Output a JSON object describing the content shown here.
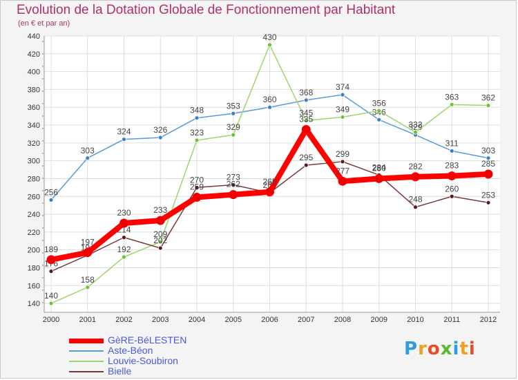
{
  "title": "Evolution de la Dotation Globale de Fonctionnement par Habitant",
  "subtitle": "(en € et par an)",
  "logo": {
    "text": "Proxiti",
    "letters": [
      "P",
      "r",
      "o",
      "x",
      "i",
      "t",
      "i"
    ],
    "colors": [
      "#2f9be0",
      "#f0a020",
      "#e84a2a",
      "#5cb82e",
      "#2f9be0",
      "#f0a020",
      "#e84a2a"
    ]
  },
  "chart_data": {
    "type": "line",
    "title": "Evolution de la Dotation Globale de Fonctionnement par Habitant",
    "subtitle": "(en € et par an)",
    "xlabel": "",
    "ylabel": "",
    "ylim": [
      130,
      440
    ],
    "yticks": [
      140,
      160,
      180,
      200,
      220,
      240,
      260,
      280,
      300,
      320,
      340,
      360,
      380,
      400,
      420,
      440
    ],
    "grid": true,
    "legend_position": "bottom-left",
    "x": [
      "2000",
      "2001",
      "2002",
      "2003",
      "2004",
      "2005",
      "2006",
      "2007",
      "2008",
      "2009",
      "2010",
      "2011",
      "2012"
    ],
    "series": [
      {
        "name": "Aste-Béon",
        "color": "#5b9bd5",
        "point_color": "#3a80c8",
        "values": [
          256,
          303,
          324,
          326,
          348,
          353,
          360,
          368,
          374,
          346,
          329,
          311,
          303
        ],
        "labels": [
          "256",
          "303",
          "324",
          "326",
          "348",
          "353",
          "360",
          "368",
          "374",
          "346",
          "329",
          "311",
          "303"
        ]
      },
      {
        "name": "Louvie-Soubiron",
        "color": "#9ed56a",
        "point_color": "#6ec23a",
        "values": [
          140,
          158,
          192,
          209,
          323,
          329,
          430,
          345,
          349,
          356,
          332,
          363,
          362
        ],
        "labels": [
          "140",
          "158",
          "192",
          "209",
          "323",
          "329",
          "430",
          "345",
          "349",
          "356",
          "332",
          "363",
          "362"
        ]
      },
      {
        "name": "Bielle",
        "color": "#7a3a3a",
        "point_color": "#5a1a1a",
        "values": [
          176,
          194,
          214,
          202,
          270,
          273,
          264,
          295,
          299,
          284,
          248,
          260,
          253
        ],
        "labels": [
          "176",
          "194",
          "214",
          "202",
          "270",
          "273",
          "264",
          "295",
          "299",
          "284",
          "248",
          "260",
          "253"
        ]
      },
      {
        "name": "GèRE-BéLESTEN",
        "color": "#ff0000",
        "point_color": "#ee0000",
        "values": [
          189,
          197,
          230,
          233,
          259,
          262,
          265,
          335,
          277,
          280,
          282,
          283,
          285
        ],
        "labels": [
          "189",
          "197",
          "230",
          "233",
          "259",
          "262",
          "265",
          "335",
          "277",
          "280",
          "282",
          "283",
          "285"
        ]
      }
    ],
    "legend": [
      {
        "name": "GèRE-BéLESTEN",
        "color": "#ff0000"
      },
      {
        "name": "Aste-Béon",
        "color": "#5b9bd5"
      },
      {
        "name": "Louvie-Soubiron",
        "color": "#9ed56a"
      },
      {
        "name": "Bielle",
        "color": "#7a3a3a"
      }
    ]
  }
}
